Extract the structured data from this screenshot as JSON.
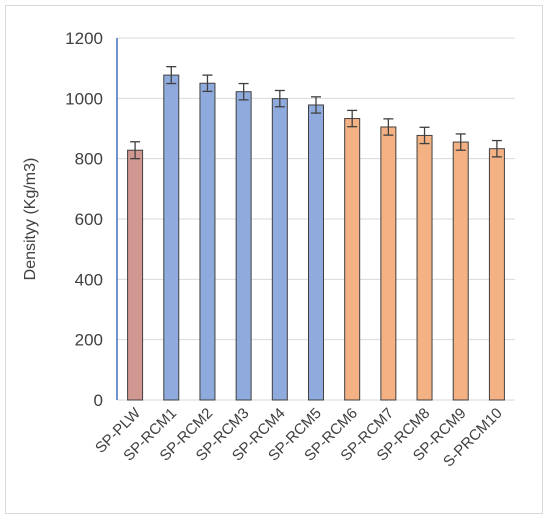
{
  "chart_data": {
    "type": "bar",
    "title": "",
    "xlabel": "",
    "ylabel": "Densityy (Kg/m3)",
    "ylim": [
      0,
      1200
    ],
    "yticks": [
      0,
      200,
      400,
      600,
      800,
      1000,
      1200
    ],
    "grid": true,
    "legend": "none",
    "categories": [
      "SP-PLW",
      "SP-RCM1",
      "SP-RCM2",
      "SP-RCM3",
      "SP-RCM4",
      "SP-RCM5",
      "SP-RCM6",
      "SP-RCM7",
      "SP-RCM8",
      "SP-RCM9",
      "S-PRCM10"
    ],
    "values": [
      828,
      1077,
      1050,
      1022,
      999,
      978,
      933,
      905,
      877,
      855,
      833
    ],
    "errors": [
      28,
      28,
      27,
      27,
      27,
      27,
      27,
      27,
      27,
      27,
      27
    ],
    "bar_colors": [
      "#d09890",
      "#8faadc",
      "#8faadc",
      "#8faadc",
      "#8faadc",
      "#8faadc",
      "#f4b183",
      "#f4b183",
      "#f4b183",
      "#f4b183",
      "#f4b183"
    ],
    "bar_edge_color": "#404040",
    "axis_color": "#4472c4",
    "grid_color": "#d9d9d9"
  }
}
